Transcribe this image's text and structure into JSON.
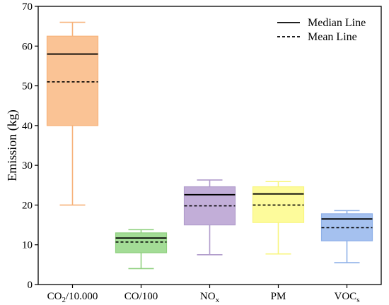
{
  "chart_data": {
    "type": "box",
    "ylabel": "Emission (kg)",
    "ylim": [
      0,
      70
    ],
    "yticks": [
      0,
      10,
      20,
      30,
      40,
      50,
      60,
      70
    ],
    "categories": [
      {
        "base": "CO",
        "sub": "2",
        "suffix": "/10.000"
      },
      {
        "base": "CO/100",
        "sub": "",
        "suffix": ""
      },
      {
        "base": "NO",
        "sub": "x",
        "suffix": ""
      },
      {
        "base": "PM",
        "sub": "",
        "suffix": ""
      },
      {
        "base": "VOC",
        "sub": "s",
        "suffix": ""
      }
    ],
    "boxes": [
      {
        "whisker_low": 20,
        "q1": 40,
        "median": 58,
        "mean": 51,
        "q3": 62.5,
        "whisker_high": 66,
        "fill": "#fac395",
        "edge": "#f7b27a"
      },
      {
        "whisker_low": 4,
        "q1": 8,
        "median": 11.7,
        "mean": 10.7,
        "q3": 13,
        "whisker_high": 13.8,
        "fill": "#a3dc96",
        "edge": "#8fd07f"
      },
      {
        "whisker_low": 7.5,
        "q1": 15,
        "median": 22.6,
        "mean": 19.8,
        "q3": 24.6,
        "whisker_high": 26.3,
        "fill": "#c2aed8",
        "edge": "#b09bcb"
      },
      {
        "whisker_low": 7.7,
        "q1": 15.6,
        "median": 22.8,
        "mean": 20,
        "q3": 24.6,
        "whisker_high": 25.9,
        "fill": "#fdfb9b",
        "edge": "#f8f57e"
      },
      {
        "whisker_low": 5.5,
        "q1": 11,
        "median": 16.5,
        "mean": 14.3,
        "q3": 17.8,
        "whisker_high": 18.6,
        "fill": "#a5c1ef",
        "edge": "#8eb0e8"
      }
    ],
    "legend": {
      "position": "top-right",
      "items": [
        {
          "label": "Median Line",
          "style": "solid"
        },
        {
          "label": "Mean Line",
          "style": "dashed"
        }
      ]
    },
    "grid": false
  }
}
